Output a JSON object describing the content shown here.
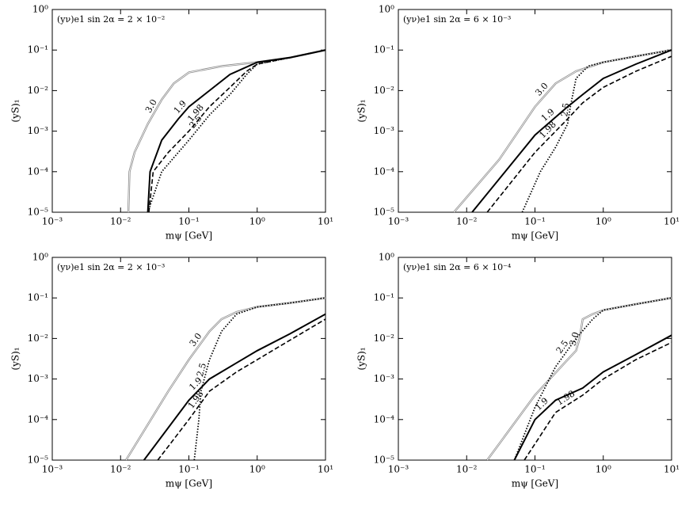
{
  "chart_data": [
    {
      "type": "line",
      "title": "(yν)e1 sin 2α = 2 × 10⁻²",
      "xlabel": "mψ [GeV]",
      "ylabel": "(yS)₁",
      "log_x": true,
      "log_y": true,
      "xlim": [
        0.001,
        10
      ],
      "ylim": [
        1e-05,
        1
      ],
      "xticks": [
        {
          "value": 0.001,
          "label": "10⁻³"
        },
        {
          "value": 0.01,
          "label": "10⁻²"
        },
        {
          "value": 0.1,
          "label": "10⁻¹"
        },
        {
          "value": 1,
          "label": "10⁰"
        },
        {
          "value": 10,
          "label": "10¹"
        }
      ],
      "yticks": [
        {
          "value": 1e-05,
          "label": "10⁻⁵"
        },
        {
          "value": 0.0001,
          "label": "10⁻⁴"
        },
        {
          "value": 0.001,
          "label": "10⁻³"
        },
        {
          "value": 0.01,
          "label": "10⁻²"
        },
        {
          "value": 0.1,
          "label": "10⁻¹"
        },
        {
          "value": 1,
          "label": "10⁰"
        }
      ],
      "series": [
        {
          "name": "3.0",
          "color": "#8c8c8c",
          "style": "double",
          "x": [
            0.013,
            0.0135,
            0.016,
            0.025,
            0.04,
            0.06,
            0.1,
            0.3,
            1,
            3,
            10
          ],
          "values": [
            1e-05,
            0.0001,
            0.0003,
            0.0015,
            0.006,
            0.015,
            0.028,
            0.04,
            0.05,
            0.065,
            0.1
          ]
        },
        {
          "name": "1.9",
          "color": "#000000",
          "style": "solid",
          "x": [
            0.025,
            0.027,
            0.04,
            0.07,
            0.1,
            0.2,
            0.4,
            1,
            3,
            10
          ],
          "values": [
            1e-05,
            0.0001,
            0.0006,
            0.002,
            0.004,
            0.01,
            0.025,
            0.05,
            0.065,
            0.1
          ]
        },
        {
          "name": "1.98",
          "color": "#000000",
          "style": "dashed",
          "x": [
            0.026,
            0.03,
            0.05,
            0.1,
            0.2,
            0.4,
            0.7,
            1,
            3,
            10
          ],
          "values": [
            1e-05,
            0.0001,
            0.0003,
            0.001,
            0.004,
            0.012,
            0.03,
            0.045,
            0.065,
            0.1
          ]
        },
        {
          "name": "2.5",
          "color": "#000000",
          "style": "dotted",
          "x": [
            0.025,
            0.04,
            0.1,
            0.2,
            0.4,
            0.7,
            1,
            3,
            10
          ],
          "values": [
            1e-05,
            0.0001,
            0.0006,
            0.0025,
            0.008,
            0.025,
            0.045,
            0.065,
            0.1
          ]
        }
      ]
    },
    {
      "type": "line",
      "title": "(yν)e1 sin 2α = 6 × 10⁻³",
      "xlabel": "mψ [GeV]",
      "ylabel": "(yS)₁",
      "log_x": true,
      "log_y": true,
      "xlim": [
        0.001,
        10
      ],
      "ylim": [
        1e-05,
        1
      ],
      "xticks": [
        {
          "value": 0.001,
          "label": "10⁻³"
        },
        {
          "value": 0.01,
          "label": "10⁻²"
        },
        {
          "value": 0.1,
          "label": "10⁻¹"
        },
        {
          "value": 1,
          "label": "10⁰"
        },
        {
          "value": 10,
          "label": "10¹"
        }
      ],
      "yticks": [
        {
          "value": 1e-05,
          "label": "10⁻⁵"
        },
        {
          "value": 0.0001,
          "label": "10⁻⁴"
        },
        {
          "value": 0.001,
          "label": "10⁻³"
        },
        {
          "value": 0.01,
          "label": "10⁻²"
        },
        {
          "value": 0.1,
          "label": "10⁻¹"
        },
        {
          "value": 1,
          "label": "10⁰"
        }
      ],
      "series": [
        {
          "name": "3.0",
          "color": "#8c8c8c",
          "style": "double",
          "x": [
            0.0065,
            0.03,
            0.1,
            0.2,
            0.4,
            1,
            3,
            10
          ],
          "values": [
            1e-05,
            0.0002,
            0.004,
            0.015,
            0.03,
            0.05,
            0.07,
            0.1
          ]
        },
        {
          "name": "1.9",
          "color": "#000000",
          "style": "solid",
          "x": [
            0.012,
            0.1,
            0.3,
            0.5,
            1,
            3,
            10
          ],
          "values": [
            1e-05,
            0.0008,
            0.004,
            0.008,
            0.02,
            0.045,
            0.1
          ]
        },
        {
          "name": "1.98",
          "color": "#000000",
          "style": "dashed",
          "x": [
            0.02,
            0.1,
            0.3,
            0.5,
            1,
            3,
            10
          ],
          "values": [
            1e-05,
            0.0003,
            0.002,
            0.005,
            0.012,
            0.03,
            0.07
          ]
        },
        {
          "name": "2.5",
          "color": "#000000",
          "style": "dotted",
          "x": [
            0.065,
            0.12,
            0.2,
            0.3,
            0.33,
            0.4,
            0.6,
            1,
            3,
            10
          ],
          "values": [
            1e-05,
            0.0001,
            0.0004,
            0.0015,
            0.004,
            0.02,
            0.04,
            0.05,
            0.07,
            0.1
          ]
        }
      ]
    },
    {
      "type": "line",
      "title": "(yν)e1 sin 2α = 2 × 10⁻³",
      "xlabel": "mψ [GeV]",
      "ylabel": "(yS)₁",
      "log_x": true,
      "log_y": true,
      "xlim": [
        0.001,
        10
      ],
      "ylim": [
        1e-05,
        1
      ],
      "xticks": [
        {
          "value": 0.001,
          "label": "10⁻³"
        },
        {
          "value": 0.01,
          "label": "10⁻²"
        },
        {
          "value": 0.1,
          "label": "10⁻¹"
        },
        {
          "value": 1,
          "label": "10⁰"
        },
        {
          "value": 10,
          "label": "10¹"
        }
      ],
      "yticks": [
        {
          "value": 1e-05,
          "label": "10⁻⁵"
        },
        {
          "value": 0.0001,
          "label": "10⁻⁴"
        },
        {
          "value": 0.001,
          "label": "10⁻³"
        },
        {
          "value": 0.01,
          "label": "10⁻²"
        },
        {
          "value": 0.1,
          "label": "10⁻¹"
        },
        {
          "value": 1,
          "label": "10⁰"
        }
      ],
      "series": [
        {
          "name": "3.0",
          "color": "#8c8c8c",
          "style": "double",
          "x": [
            0.012,
            0.05,
            0.1,
            0.2,
            0.3,
            0.5,
            1,
            3,
            10
          ],
          "values": [
            1e-05,
            0.0005,
            0.003,
            0.015,
            0.03,
            0.045,
            0.06,
            0.075,
            0.1
          ]
        },
        {
          "name": "1.9",
          "color": "#000000",
          "style": "solid",
          "x": [
            0.022,
            0.1,
            0.2,
            0.5,
            1,
            3,
            10
          ],
          "values": [
            1e-05,
            0.0003,
            0.001,
            0.0025,
            0.005,
            0.013,
            0.04
          ]
        },
        {
          "name": "1.98",
          "color": "#000000",
          "style": "dashed",
          "x": [
            0.035,
            0.1,
            0.2,
            0.5,
            1,
            3,
            10
          ],
          "values": [
            1e-05,
            0.0001,
            0.0005,
            0.0015,
            0.003,
            0.009,
            0.03
          ]
        },
        {
          "name": "2.5",
          "color": "#000000",
          "style": "dotted",
          "x": [
            0.12,
            0.14,
            0.15,
            0.2,
            0.3,
            0.5,
            1,
            3,
            10
          ],
          "values": [
            1e-05,
            0.0001,
            0.0005,
            0.003,
            0.015,
            0.04,
            0.06,
            0.075,
            0.1
          ]
        }
      ]
    },
    {
      "type": "line",
      "title": "(yν)e1 sin 2α = 6 × 10⁻⁴",
      "xlabel": "mψ [GeV]",
      "ylabel": "(yS)₁",
      "log_x": true,
      "log_y": true,
      "xlim": [
        0.001,
        10
      ],
      "ylim": [
        1e-05,
        1
      ],
      "xticks": [
        {
          "value": 0.001,
          "label": "10⁻³"
        },
        {
          "value": 0.01,
          "label": "10⁻²"
        },
        {
          "value": 0.1,
          "label": "10⁻¹"
        },
        {
          "value": 1,
          "label": "10⁰"
        },
        {
          "value": 10,
          "label": "10¹"
        }
      ],
      "yticks": [
        {
          "value": 1e-05,
          "label": "10⁻⁵"
        },
        {
          "value": 0.0001,
          "label": "10⁻⁴"
        },
        {
          "value": 0.001,
          "label": "10⁻³"
        },
        {
          "value": 0.01,
          "label": "10⁻²"
        },
        {
          "value": 0.1,
          "label": "10⁻¹"
        },
        {
          "value": 1,
          "label": "10⁰"
        }
      ],
      "series": [
        {
          "name": "3.0",
          "color": "#8c8c8c",
          "style": "double",
          "x": [
            0.02,
            0.1,
            0.3,
            0.4,
            0.45,
            0.5,
            0.7,
            1,
            3,
            10
          ],
          "values": [
            1e-05,
            0.0004,
            0.003,
            0.005,
            0.01,
            0.03,
            0.04,
            0.05,
            0.07,
            0.1
          ]
        },
        {
          "name": "1.9",
          "color": "#000000",
          "style": "solid",
          "x": [
            0.05,
            0.1,
            0.2,
            0.5,
            1,
            3,
            10
          ],
          "values": [
            1e-05,
            0.0001,
            0.0003,
            0.0006,
            0.0015,
            0.004,
            0.012
          ]
        },
        {
          "name": "1.98",
          "color": "#000000",
          "style": "dashed",
          "x": [
            0.07,
            0.2,
            0.5,
            1,
            3,
            10
          ],
          "values": [
            1e-05,
            0.00015,
            0.0004,
            0.001,
            0.003,
            0.008
          ]
        },
        {
          "name": "2.5",
          "color": "#000000",
          "style": "dotted",
          "x": [
            0.05,
            0.1,
            0.2,
            0.4,
            0.7,
            1,
            3,
            10
          ],
          "values": [
            1e-05,
            0.0002,
            0.002,
            0.01,
            0.03,
            0.05,
            0.07,
            0.1
          ]
        }
      ]
    }
  ]
}
